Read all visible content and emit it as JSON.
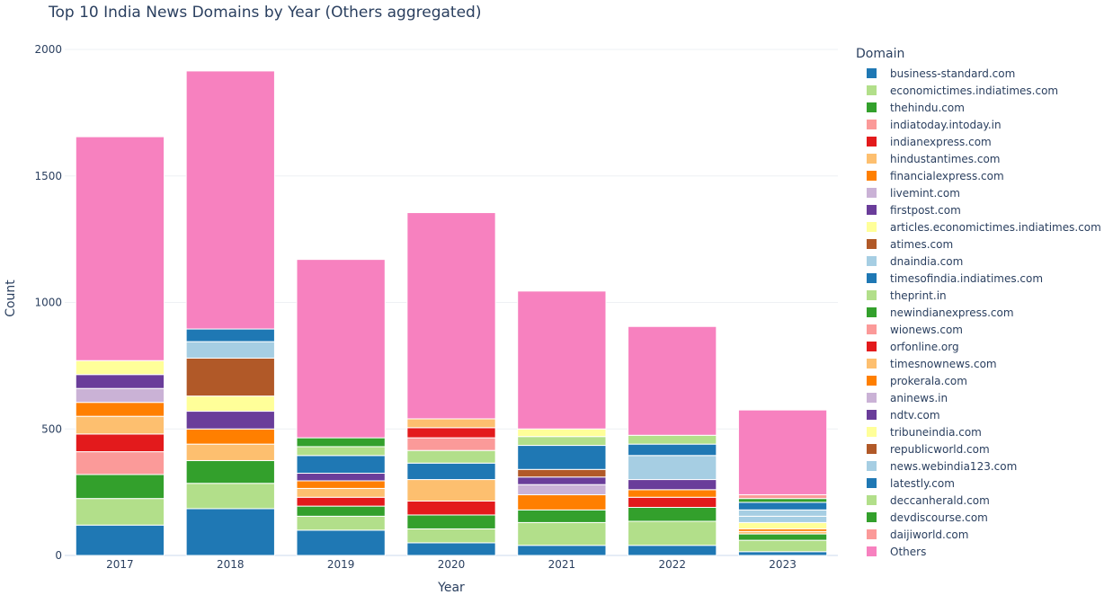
{
  "chart_data": {
    "type": "bar",
    "stacked": true,
    "title": "Top 10 India News Domains by Year (Others aggregated)",
    "xlabel": "Year",
    "ylabel": "Count",
    "ylim": [
      0,
      2000
    ],
    "yticks": [
      0,
      500,
      1000,
      1500,
      2000
    ],
    "legend_title": "Domain",
    "legend_position": "right",
    "categories": [
      "2017",
      "2018",
      "2019",
      "2020",
      "2021",
      "2022",
      "2023"
    ],
    "series": [
      {
        "name": "business-standard.com",
        "color": "#1f78b4",
        "values": [
          120,
          185,
          100,
          50,
          40,
          40,
          15
        ]
      },
      {
        "name": "economictimes.indiatimes.com",
        "color": "#b2df8a",
        "values": [
          105,
          100,
          55,
          55,
          90,
          95,
          45
        ]
      },
      {
        "name": "thehindu.com",
        "color": "#33a02c",
        "values": [
          95,
          90,
          40,
          55,
          50,
          55,
          25
        ]
      },
      {
        "name": "indiatoday.intoday.in",
        "color": "#fb9a99",
        "values": [
          90,
          0,
          0,
          0,
          0,
          0,
          0
        ]
      },
      {
        "name": "indianexpress.com",
        "color": "#e31a1c",
        "values": [
          70,
          0,
          35,
          55,
          0,
          40,
          0
        ]
      },
      {
        "name": "hindustantimes.com",
        "color": "#fdbf6f",
        "values": [
          70,
          65,
          35,
          85,
          0,
          0,
          10
        ]
      },
      {
        "name": "financialexpress.com",
        "color": "#ff7f00",
        "values": [
          55,
          60,
          30,
          0,
          60,
          30,
          10
        ]
      },
      {
        "name": "livemint.com",
        "color": "#cab2d6",
        "values": [
          55,
          0,
          0,
          0,
          40,
          0,
          0
        ]
      },
      {
        "name": "firstpost.com",
        "color": "#6a3d9a",
        "values": [
          55,
          70,
          30,
          0,
          30,
          40,
          0
        ]
      },
      {
        "name": "articles.economictimes.indiatimes.com",
        "color": "#ffff99",
        "values": [
          55,
          60,
          0,
          0,
          0,
          0,
          25
        ]
      },
      {
        "name": "atimes.com",
        "color": "#b15928",
        "values": [
          0,
          150,
          0,
          0,
          30,
          0,
          0
        ]
      },
      {
        "name": "dnaindia.com",
        "color": "#a6cee3",
        "values": [
          0,
          65,
          0,
          0,
          0,
          95,
          25
        ]
      },
      {
        "name": "timesofindia.indiatimes.com",
        "color": "#1f78b4",
        "values": [
          0,
          50,
          70,
          65,
          95,
          45,
          0
        ]
      },
      {
        "name": "theprint.in",
        "color": "#b2df8a",
        "values": [
          0,
          0,
          35,
          50,
          35,
          35,
          0
        ]
      },
      {
        "name": "newindianexpress.com",
        "color": "#33a02c",
        "values": [
          0,
          0,
          35,
          0,
          0,
          0,
          0
        ]
      },
      {
        "name": "wionews.com",
        "color": "#fb9a99",
        "values": [
          0,
          0,
          0,
          50,
          0,
          0,
          0
        ]
      },
      {
        "name": "orfonline.org",
        "color": "#e31a1c",
        "values": [
          0,
          0,
          0,
          40,
          0,
          0,
          0
        ]
      },
      {
        "name": "timesnownews.com",
        "color": "#fdbf6f",
        "values": [
          0,
          0,
          0,
          35,
          0,
          0,
          0
        ]
      },
      {
        "name": "prokerala.com",
        "color": "#ff7f00",
        "values": [
          0,
          0,
          0,
          0,
          0,
          0,
          0
        ]
      },
      {
        "name": "aninews.in",
        "color": "#cab2d6",
        "values": [
          0,
          0,
          0,
          0,
          0,
          0,
          0
        ]
      },
      {
        "name": "ndtv.com",
        "color": "#6a3d9a",
        "values": [
          0,
          0,
          0,
          0,
          0,
          0,
          0
        ]
      },
      {
        "name": "tribuneindia.com",
        "color": "#ffff99",
        "values": [
          0,
          0,
          0,
          0,
          30,
          0,
          0
        ]
      },
      {
        "name": "republicworld.com",
        "color": "#b15928",
        "values": [
          0,
          0,
          0,
          0,
          0,
          0,
          0
        ]
      },
      {
        "name": "news.webindia123.com",
        "color": "#a6cee3",
        "values": [
          0,
          0,
          0,
          0,
          0,
          0,
          25
        ]
      },
      {
        "name": "latestly.com",
        "color": "#1f78b4",
        "values": [
          0,
          0,
          0,
          0,
          0,
          0,
          30
        ]
      },
      {
        "name": "deccanherald.com",
        "color": "#b2df8a",
        "values": [
          0,
          0,
          0,
          0,
          0,
          0,
          0
        ]
      },
      {
        "name": "devdiscourse.com",
        "color": "#33a02c",
        "values": [
          0,
          0,
          0,
          0,
          0,
          0,
          15
        ]
      },
      {
        "name": "daijiworld.com",
        "color": "#fb9a99",
        "values": [
          0,
          0,
          0,
          0,
          0,
          0,
          15
        ]
      },
      {
        "name": "Others",
        "color": "#f781bf",
        "values": [
          885,
          1020,
          705,
          815,
          545,
          430,
          335
        ]
      }
    ]
  }
}
